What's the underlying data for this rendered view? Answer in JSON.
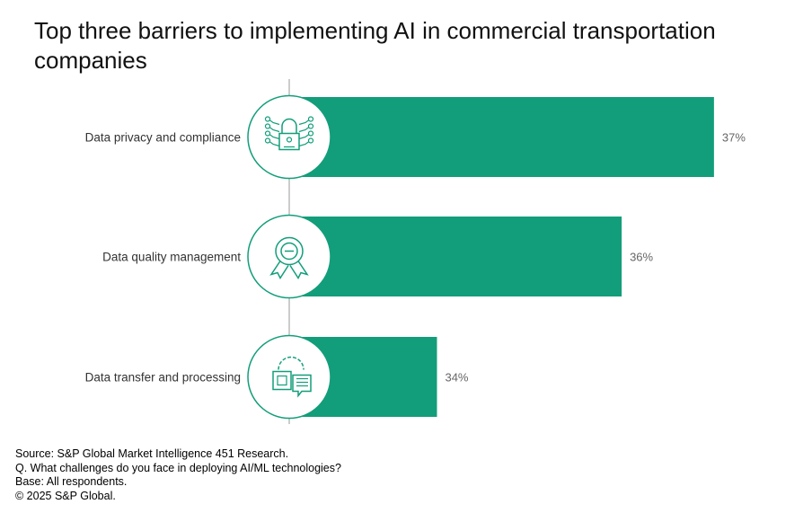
{
  "chart_data": {
    "type": "bar",
    "orientation": "horizontal",
    "title": "Top three barriers to implementing AI in commercial transportation companies",
    "categories": [
      "Data privacy and compliance",
      "Data quality management",
      "Data transfer and processing"
    ],
    "values": [
      37,
      36,
      34
    ],
    "value_labels": [
      "37%",
      "36%",
      "34%"
    ],
    "icons": [
      "lock-circuit-icon",
      "award-ribbon-icon",
      "chip-gear-icon"
    ],
    "xlim": [
      32.4,
      37.5
    ],
    "xlabel": "",
    "ylabel": "",
    "grid": false,
    "bar_color": "#129e7a"
  },
  "footer": {
    "source": "Source: S&P Global Market Intelligence 451 Research.",
    "question": "Q. What challenges do you face in deploying AI/ML technologies?",
    "base": "Base: All respondents.",
    "copyright": "© 2025 S&P Global."
  }
}
